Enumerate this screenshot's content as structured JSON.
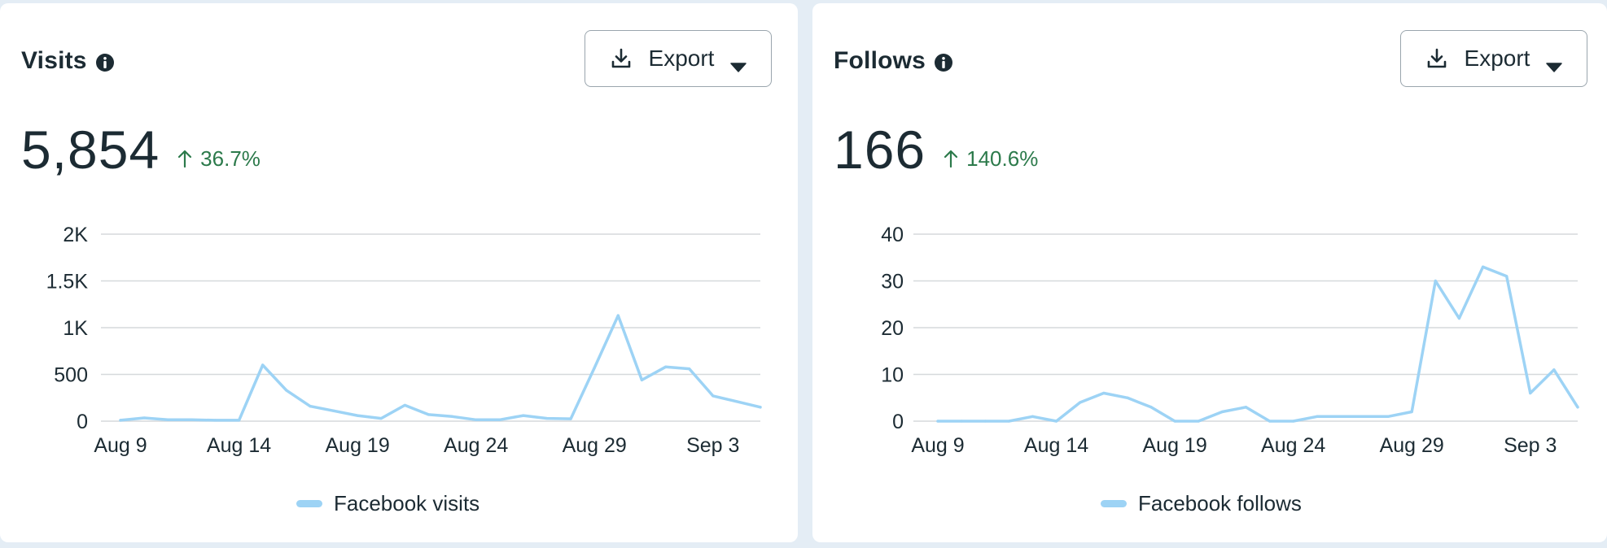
{
  "cards": [
    {
      "title": "Visits",
      "export_label": "Export",
      "metric_value": "5,854",
      "metric_change": "36.7%",
      "legend_label": "Facebook visits"
    },
    {
      "title": "Follows",
      "export_label": "Export",
      "metric_value": "166",
      "metric_change": "140.6%",
      "legend_label": "Facebook follows"
    }
  ],
  "colors": {
    "series": "#9dd3f5",
    "positive_change": "#2c7a4b",
    "gridline": "#d6d9dc"
  },
  "chart_data": [
    {
      "type": "line",
      "title": "Visits",
      "x": [
        "Aug 9",
        "Aug 10",
        "Aug 11",
        "Aug 12",
        "Aug 13",
        "Aug 14",
        "Aug 15",
        "Aug 16",
        "Aug 17",
        "Aug 18",
        "Aug 19",
        "Aug 20",
        "Aug 21",
        "Aug 22",
        "Aug 23",
        "Aug 24",
        "Aug 25",
        "Aug 26",
        "Aug 27",
        "Aug 28",
        "Aug 29",
        "Aug 30",
        "Aug 31",
        "Sep 1",
        "Sep 2",
        "Sep 3",
        "Sep 4",
        "Sep 5"
      ],
      "x_tick_labels": [
        "Aug 9",
        "Aug 14",
        "Aug 19",
        "Aug 24",
        "Aug 29",
        "Sep 3"
      ],
      "y_ticks": [
        0,
        500,
        1000,
        1500,
        2000
      ],
      "y_tick_labels": [
        "0",
        "500",
        "1K",
        "1.5K",
        "2K"
      ],
      "ylim": [
        0,
        2000
      ],
      "grid": true,
      "legend_position": "bottom-center",
      "series": [
        {
          "name": "Facebook visits",
          "values": [
            10,
            35,
            15,
            15,
            10,
            10,
            600,
            330,
            160,
            110,
            60,
            30,
            170,
            70,
            50,
            15,
            15,
            60,
            30,
            25,
            570,
            1130,
            440,
            580,
            560,
            270,
            210,
            150
          ]
        }
      ]
    },
    {
      "type": "line",
      "title": "Follows",
      "x": [
        "Aug 9",
        "Aug 10",
        "Aug 11",
        "Aug 12",
        "Aug 13",
        "Aug 14",
        "Aug 15",
        "Aug 16",
        "Aug 17",
        "Aug 18",
        "Aug 19",
        "Aug 20",
        "Aug 21",
        "Aug 22",
        "Aug 23",
        "Aug 24",
        "Aug 25",
        "Aug 26",
        "Aug 27",
        "Aug 28",
        "Aug 29",
        "Aug 30",
        "Aug 31",
        "Sep 1",
        "Sep 2",
        "Sep 3",
        "Sep 4",
        "Sep 5"
      ],
      "x_tick_labels": [
        "Aug 9",
        "Aug 14",
        "Aug 19",
        "Aug 24",
        "Aug 29",
        "Sep 3"
      ],
      "y_ticks": [
        0,
        10,
        20,
        30,
        40
      ],
      "y_tick_labels": [
        "0",
        "10",
        "20",
        "30",
        "40"
      ],
      "ylim": [
        0,
        40
      ],
      "grid": true,
      "legend_position": "bottom-center",
      "series": [
        {
          "name": "Facebook follows",
          "values": [
            0,
            0,
            0,
            0,
            1,
            0,
            4,
            6,
            5,
            3,
            0,
            0,
            2,
            3,
            0,
            0,
            1,
            1,
            1,
            1,
            2,
            30,
            22,
            33,
            31,
            6,
            11,
            3
          ]
        }
      ]
    }
  ]
}
